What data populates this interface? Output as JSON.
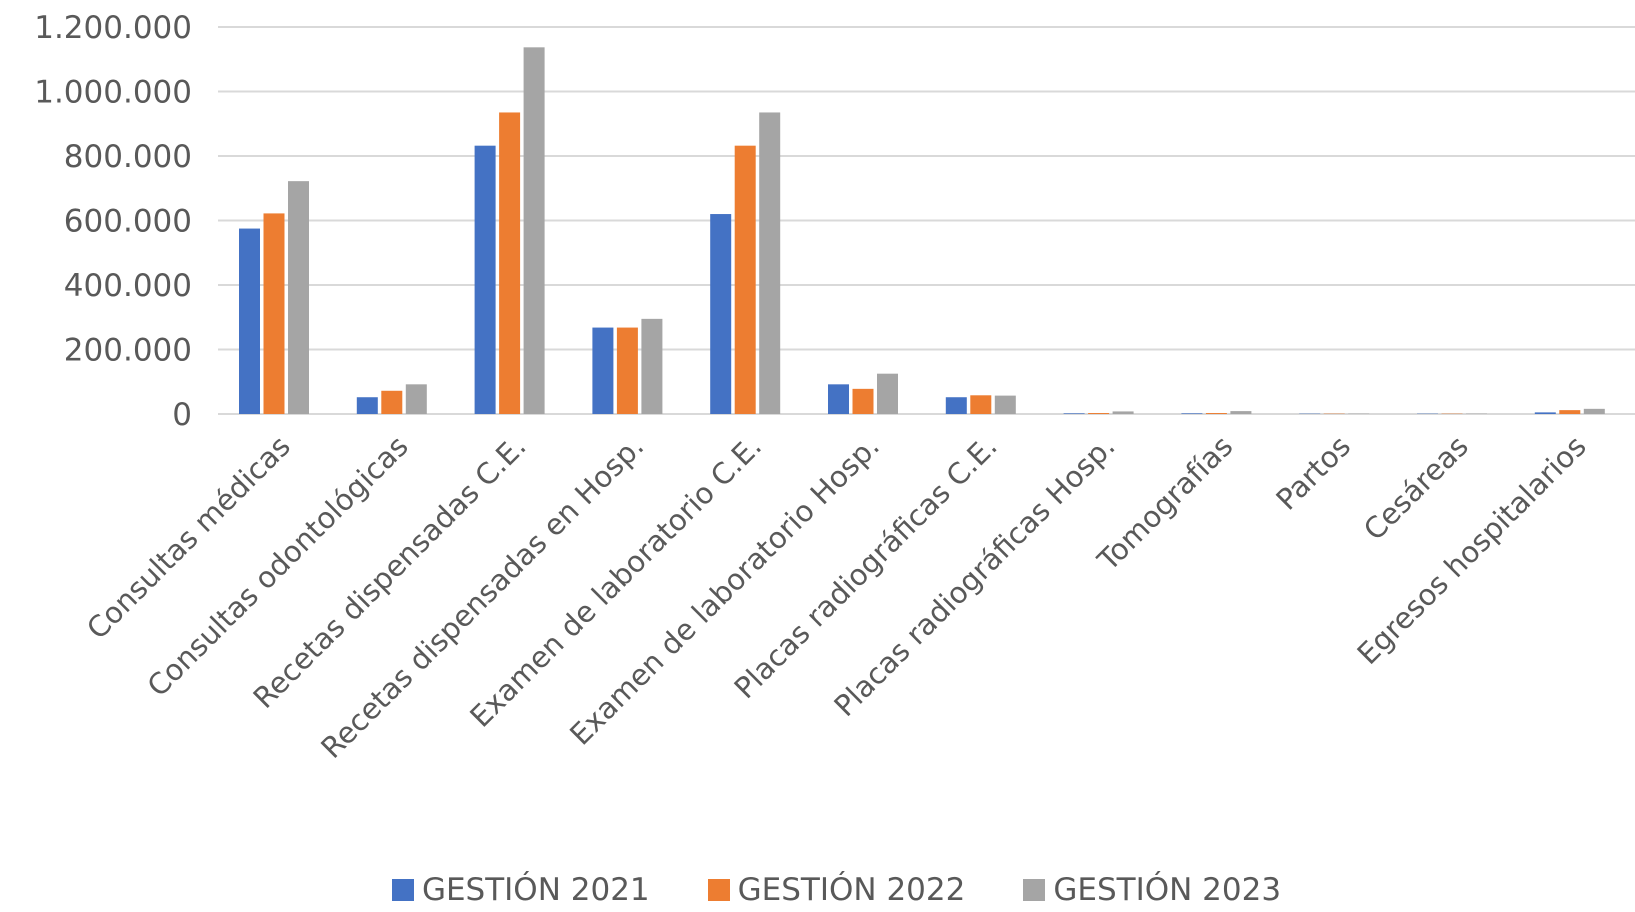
{
  "chart_data": {
    "type": "bar",
    "title": "",
    "xlabel": "",
    "ylabel": "",
    "ylim": [
      0,
      1200000
    ],
    "yticks": [
      0,
      200000,
      400000,
      600000,
      800000,
      1000000,
      1200000
    ],
    "ytick_labels": [
      "0",
      "200.000",
      "400.000",
      "600.000",
      "800.000",
      "1.000.000",
      "1.200.000"
    ],
    "grid": true,
    "legend_position": "bottom",
    "categories": [
      "Consultas médicas",
      "Consultas odontológicas",
      "Recetas dispensadas C.E.",
      "Recetas dispensadas en Hosp.",
      "Examen de laboratorio C.E.",
      "Examen de laboratorio Hosp.",
      "Placas radiográficas C.E.",
      "Placas radiográficas Hosp.",
      "Tomografías",
      "Partos",
      "Cesáreas",
      "Egresos hospitalarios"
    ],
    "series": [
      {
        "name": "GESTIÓN 2021",
        "color": "#4472C4",
        "values": [
          575000,
          52000,
          832000,
          268000,
          620000,
          92000,
          52000,
          2000,
          2000,
          1000,
          1000,
          5000
        ]
      },
      {
        "name": "GESTIÓN 2022",
        "color": "#ED7D31",
        "values": [
          622000,
          72000,
          935000,
          268000,
          832000,
          78000,
          58000,
          3000,
          3000,
          1000,
          1000,
          12000
        ]
      },
      {
        "name": "GESTIÓN 2023",
        "color": "#A5A5A5",
        "values": [
          722000,
          92000,
          1137000,
          295000,
          935000,
          125000,
          57000,
          8000,
          9000,
          1000,
          1000,
          16000
        ]
      }
    ]
  }
}
